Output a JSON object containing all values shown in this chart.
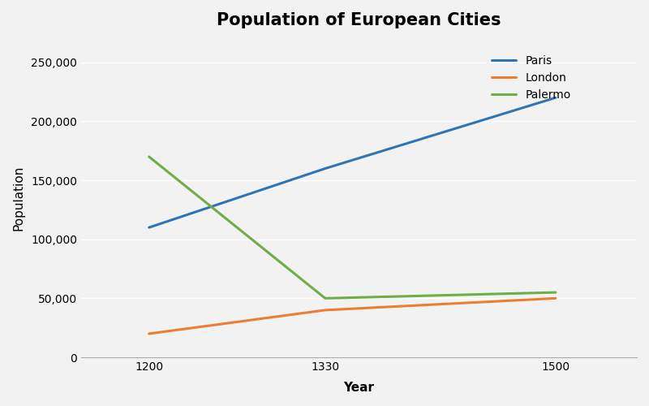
{
  "title": "Population of European Cities",
  "xlabel": "Year",
  "ylabel": "Population",
  "years": [
    1200,
    1330,
    1500
  ],
  "series": {
    "Paris": [
      110000,
      160000,
      220000
    ],
    "London": [
      20000,
      40000,
      50000
    ],
    "Palermo": [
      170000,
      50000,
      55000
    ]
  },
  "colors": {
    "Paris": "#2E75B6",
    "London": "#ED7D31",
    "Palermo": "#70AD47"
  },
  "yticks": [
    0,
    50000,
    100000,
    150000,
    200000,
    250000
  ],
  "ytick_labels": [
    "0",
    "50,000",
    "100,000",
    "150,000",
    "200,000",
    "250,000"
  ],
  "ylim": [
    0,
    270000
  ],
  "bg_color": "#F2F2F2",
  "plot_bg_color": "#F2F2F2",
  "title_fontsize": 15,
  "axis_label_fontsize": 11,
  "tick_fontsize": 10,
  "legend_fontsize": 10,
  "line_width": 2.2
}
